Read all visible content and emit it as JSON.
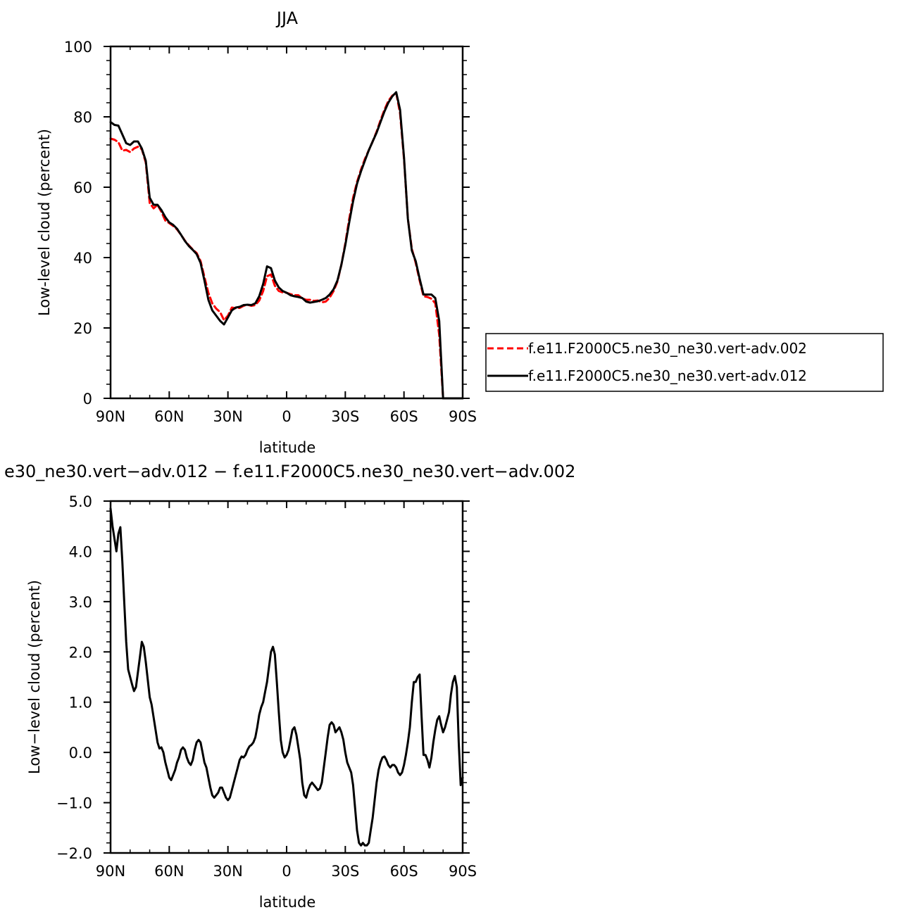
{
  "chart_data": [
    {
      "type": "line",
      "title": "JJA",
      "xlabel": "latitude",
      "ylabel": "Low-level cloud (percent)",
      "xlim": [
        90,
        -90
      ],
      "ylim": [
        0,
        100
      ],
      "x_ticks": [
        90,
        60,
        30,
        0,
        -30,
        -60,
        -90
      ],
      "x_tick_labels": [
        "90N",
        "60N",
        "30N",
        "0",
        "30S",
        "60S",
        "90S"
      ],
      "y_ticks": [
        0,
        20,
        40,
        60,
        80,
        100
      ],
      "y_tick_labels": [
        "0",
        "20",
        "40",
        "60",
        "80",
        "100"
      ],
      "legend_position": "right",
      "series": [
        {
          "name": "f.e11.F2000C5.ne30_ne30.vert-adv.002",
          "color": "#ff0000",
          "dash": "dashed",
          "x": [
            90,
            88,
            86,
            84,
            82,
            80,
            78,
            76,
            74,
            72,
            70,
            68,
            66,
            64,
            62,
            60,
            58,
            56,
            54,
            52,
            50,
            48,
            46,
            44,
            42,
            40,
            38,
            36,
            34,
            32,
            30,
            28,
            26,
            24,
            22,
            20,
            18,
            16,
            14,
            12,
            10,
            8,
            6,
            4,
            2,
            0,
            -2,
            -4,
            -6,
            -8,
            -10,
            -12,
            -14,
            -16,
            -18,
            -20,
            -22,
            -24,
            -26,
            -28,
            -30,
            -32,
            -34,
            -36,
            -38,
            -40,
            -42,
            -44,
            -46,
            -48,
            -50,
            -52,
            -54,
            -56,
            -58,
            -60,
            -62,
            -64,
            -66,
            -68,
            -70,
            -72,
            -74,
            -76,
            -78,
            -80,
            -82,
            -84,
            -86,
            -88,
            -90
          ],
          "y": [
            73.8,
            73.5,
            72.8,
            70.4,
            70.6,
            70.0,
            71.0,
            71.5,
            70.8,
            67.0,
            55.5,
            54.0,
            55.0,
            53.0,
            50.5,
            49.8,
            49.0,
            48.0,
            46.5,
            44.8,
            43.5,
            42.3,
            41.3,
            39.0,
            34.5,
            30.0,
            27.0,
            25.5,
            24.5,
            22.2,
            23.5,
            25.8,
            25.6,
            25.7,
            26.3,
            26.6,
            26.3,
            26.5,
            27.8,
            30.5,
            34.7,
            35.2,
            32.0,
            30.5,
            30.1,
            30.0,
            29.6,
            29.3,
            29.3,
            28.4,
            28.0,
            28.0,
            27.7,
            27.8,
            27.3,
            27.5,
            28.6,
            30.5,
            33.2,
            38.0,
            44.0,
            51.0,
            57.0,
            61.5,
            65.0,
            68.0,
            70.5,
            73.0,
            75.8,
            79.0,
            82.0,
            84.5,
            86.0,
            86.8,
            81.0,
            68.0,
            51.0,
            42.5,
            38.5,
            33.5,
            29.0,
            28.8,
            28.3,
            27.0,
            18.0,
            0.0,
            0.0,
            0.0,
            0.0,
            0.0,
            0.0
          ]
        },
        {
          "name": "f.e11.F2000C5.ne30_ne30.vert-adv.012",
          "color": "#000000",
          "dash": "solid",
          "x": [
            90,
            88,
            86,
            84,
            82,
            80,
            78,
            76,
            74,
            72,
            70,
            68,
            66,
            64,
            62,
            60,
            58,
            56,
            54,
            52,
            50,
            48,
            46,
            44,
            42,
            40,
            38,
            36,
            34,
            32,
            30,
            28,
            26,
            24,
            22,
            20,
            18,
            16,
            14,
            12,
            10,
            8,
            6,
            4,
            2,
            0,
            -2,
            -4,
            -6,
            -8,
            -10,
            -12,
            -14,
            -16,
            -18,
            -20,
            -22,
            -24,
            -26,
            -28,
            -30,
            -32,
            -34,
            -36,
            -38,
            -40,
            -42,
            -44,
            -46,
            -48,
            -50,
            -52,
            -54,
            -56,
            -58,
            -60,
            -62,
            -64,
            -66,
            -68,
            -70,
            -72,
            -74,
            -76,
            -78,
            -80,
            -82,
            -84,
            -86,
            -88,
            -90
          ],
          "y": [
            78.5,
            77.7,
            77.5,
            75.0,
            72.5,
            72.0,
            73.0,
            73.0,
            71.0,
            67.5,
            57.0,
            55.0,
            55.0,
            53.5,
            51.5,
            50.0,
            49.3,
            48.2,
            46.5,
            44.7,
            43.3,
            42.2,
            41.0,
            38.5,
            33.5,
            28.0,
            25.0,
            23.5,
            22.0,
            21.0,
            23.0,
            25.0,
            25.8,
            26.0,
            26.5,
            26.6,
            26.5,
            27.0,
            29.0,
            32.5,
            37.5,
            37.0,
            33.5,
            31.5,
            30.5,
            30.0,
            29.3,
            29.0,
            28.8,
            28.5,
            27.5,
            27.2,
            27.4,
            27.6,
            28.0,
            28.5,
            29.5,
            31.0,
            33.5,
            38.0,
            43.5,
            50.0,
            56.0,
            61.0,
            64.5,
            67.5,
            70.5,
            73.0,
            75.5,
            78.5,
            81.5,
            84.0,
            85.8,
            87.0,
            82.0,
            68.5,
            51.0,
            42.0,
            39.0,
            34.0,
            29.5,
            29.5,
            29.5,
            28.5,
            22.0,
            0.0,
            0.0,
            0.0,
            0.0,
            0.0,
            0.0
          ]
        }
      ]
    },
    {
      "type": "line",
      "title": "e30_ne30.vert−adv.012 − f.e11.F2000C5.ne30_ne30.vert−adv.002",
      "xlabel": "latitude",
      "ylabel": "Low−level cloud (percent)",
      "xlim": [
        90,
        -90
      ],
      "ylim": [
        -2.0,
        5.0
      ],
      "x_ticks": [
        90,
        60,
        30,
        0,
        -30,
        -60,
        -90
      ],
      "x_tick_labels": [
        "90N",
        "60N",
        "30N",
        "0",
        "30S",
        "60S",
        "90S"
      ],
      "y_ticks": [
        -2.0,
        -1.0,
        0.0,
        1.0,
        2.0,
        3.0,
        4.0,
        5.0
      ],
      "y_tick_labels": [
        "−2.0",
        "−1.0",
        "0.0",
        "1.0",
        "2.0",
        "3.0",
        "4.0",
        "5.0"
      ],
      "series": [
        {
          "color": "#000000",
          "dash": "solid",
          "x": [
            90,
            89,
            87,
            86,
            85,
            84,
            83,
            82,
            81,
            80,
            79,
            78,
            77,
            76,
            75,
            74,
            73,
            72,
            71,
            70,
            69,
            68,
            67,
            66,
            65,
            64,
            63,
            62,
            61,
            60,
            59,
            58,
            57,
            56,
            55,
            54,
            53,
            52,
            51,
            50,
            49,
            48,
            47,
            46,
            45,
            44,
            43,
            42,
            41,
            40,
            39,
            38,
            37,
            36,
            35,
            34,
            33,
            32,
            31,
            30,
            29,
            28,
            27,
            26,
            25,
            24,
            23,
            22,
            21,
            20,
            19,
            18,
            17,
            16,
            15,
            14,
            13,
            12,
            11,
            10,
            9,
            8,
            7,
            6,
            5,
            4,
            3,
            2,
            1,
            0,
            -1,
            -2,
            -3,
            -4,
            -5,
            -6,
            -7,
            -8,
            -9,
            -10,
            -11,
            -12,
            -13,
            -14,
            -15,
            -16,
            -17,
            -18,
            -19,
            -20,
            -21,
            -22,
            -23,
            -24,
            -25,
            -26,
            -27,
            -28,
            -29,
            -30,
            -31,
            -32,
            -33,
            -34,
            -35,
            -36,
            -37,
            -38,
            -39,
            -40,
            -41,
            -42,
            -43,
            -44,
            -45,
            -46,
            -47,
            -48,
            -49,
            -50,
            -51,
            -52,
            -53,
            -54,
            -55,
            -56,
            -57,
            -58,
            -59,
            -60,
            -61,
            -62,
            -63,
            -64,
            -65,
            -66,
            -67,
            -68,
            -69,
            -70,
            -71,
            -72,
            -73,
            -74,
            -75,
            -76,
            -77,
            -78,
            -79,
            -80,
            -81,
            -82,
            -83,
            -84,
            -85,
            -86,
            -87,
            -88,
            -89,
            -90
          ],
          "y": [
            4.85,
            4.5,
            4.0,
            4.35,
            4.48,
            3.8,
            3.0,
            2.2,
            1.65,
            1.5,
            1.35,
            1.22,
            1.3,
            1.6,
            1.9,
            2.2,
            2.1,
            1.8,
            1.45,
            1.1,
            0.95,
            0.7,
            0.45,
            0.2,
            0.08,
            0.1,
            0.0,
            -0.2,
            -0.35,
            -0.5,
            -0.55,
            -0.45,
            -0.35,
            -0.2,
            -0.1,
            0.05,
            0.1,
            0.05,
            -0.1,
            -0.2,
            -0.25,
            -0.15,
            0.05,
            0.2,
            0.25,
            0.2,
            0.0,
            -0.2,
            -0.3,
            -0.5,
            -0.7,
            -0.85,
            -0.9,
            -0.85,
            -0.8,
            -0.7,
            -0.7,
            -0.8,
            -0.9,
            -0.95,
            -0.9,
            -0.75,
            -0.6,
            -0.45,
            -0.3,
            -0.15,
            -0.08,
            -0.1,
            -0.05,
            0.05,
            0.12,
            0.15,
            0.2,
            0.3,
            0.5,
            0.75,
            0.9,
            1.0,
            1.2,
            1.4,
            1.7,
            2.0,
            2.1,
            1.95,
            1.4,
            0.8,
            0.25,
            0.0,
            -0.1,
            -0.05,
            0.05,
            0.25,
            0.45,
            0.5,
            0.35,
            0.1,
            -0.15,
            -0.6,
            -0.85,
            -0.9,
            -0.75,
            -0.65,
            -0.6,
            -0.65,
            -0.7,
            -0.75,
            -0.72,
            -0.6,
            -0.3,
            0.0,
            0.3,
            0.55,
            0.6,
            0.55,
            0.4,
            0.45,
            0.5,
            0.4,
            0.25,
            0.0,
            -0.2,
            -0.3,
            -0.4,
            -0.65,
            -1.1,
            -1.55,
            -1.8,
            -1.85,
            -1.8,
            -1.85,
            -1.85,
            -1.8,
            -1.55,
            -1.3,
            -0.95,
            -0.6,
            -0.35,
            -0.2,
            -0.1,
            -0.08,
            -0.15,
            -0.25,
            -0.3,
            -0.25,
            -0.25,
            -0.3,
            -0.4,
            -0.45,
            -0.4,
            -0.25,
            -0.05,
            0.2,
            0.5,
            1.0,
            1.4,
            1.4,
            1.5,
            1.55,
            0.7,
            -0.05,
            -0.05,
            -0.15,
            -0.3,
            -0.1,
            0.2,
            0.45,
            0.65,
            0.72,
            0.55,
            0.4,
            0.5,
            0.65,
            0.8,
            1.15,
            1.4,
            1.52,
            1.3,
            0.2,
            -0.65,
            -0.5
          ]
        }
      ]
    }
  ]
}
